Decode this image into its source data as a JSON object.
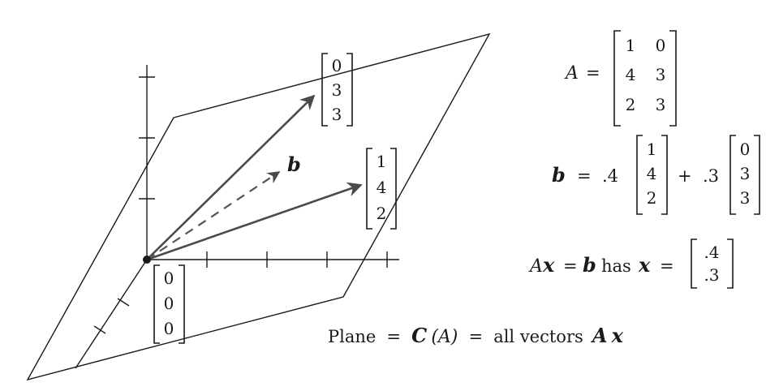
{
  "plane_label": {
    "text_prefix": "Plane",
    "eq": "=",
    "c_letter": "C",
    "c_arg": "(A)",
    "text_all": "all vectors",
    "ax_a": "A",
    "ax_x": "x"
  },
  "vectors": {
    "col2": [
      "0",
      "3",
      "3"
    ],
    "col1": [
      "1",
      "4",
      "2"
    ],
    "origin": [
      "0",
      "0",
      "0"
    ],
    "b_label": "b"
  },
  "matrix_A": {
    "name": "A",
    "eq": "=",
    "rows": [
      [
        "1",
        "0"
      ],
      [
        "4",
        "3"
      ],
      [
        "2",
        "3"
      ]
    ]
  },
  "combination": {
    "lhs": "b",
    "eq": "=",
    "coef1": ".4",
    "plus": "+",
    "coef2": ".3",
    "vec1": [
      "1",
      "4",
      "2"
    ],
    "vec2": [
      "0",
      "3",
      "3"
    ]
  },
  "solution": {
    "a": "A",
    "x": "x",
    "eq": "=",
    "b": "b",
    "has": "has",
    "x2": "x",
    "eq2": "=",
    "values": [
      ".4",
      ".3"
    ]
  },
  "colors": {
    "ink": "#1a1a1a",
    "vector": "#4a4a4a"
  }
}
